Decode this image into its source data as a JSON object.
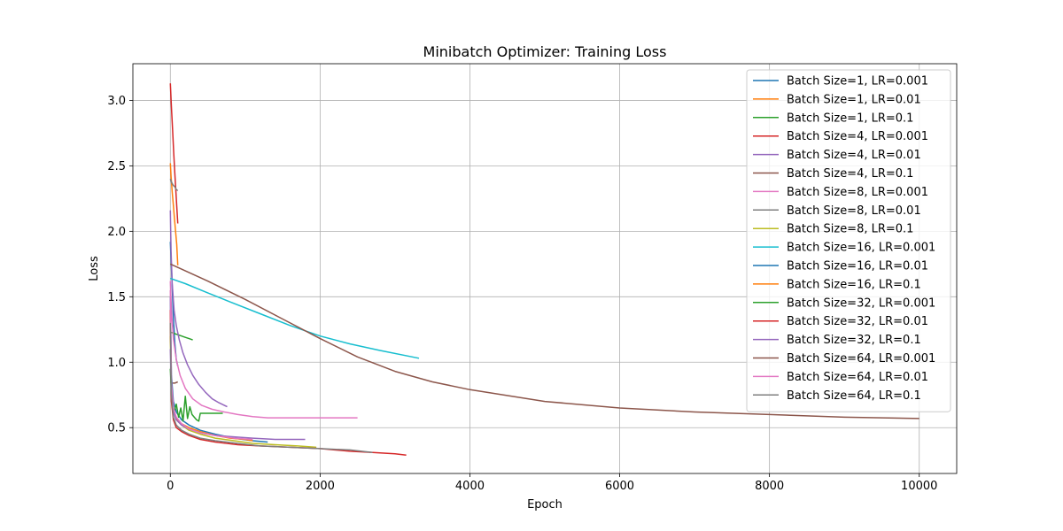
{
  "chart_data": {
    "type": "line",
    "title": "Minibatch Optimizer: Training Loss",
    "xlabel": "Epoch",
    "ylabel": "Loss",
    "xlim": [
      -500,
      10500
    ],
    "ylim": [
      0.15,
      3.28
    ],
    "xticks": [
      0,
      2000,
      4000,
      6000,
      8000,
      10000
    ],
    "xtick_labels": [
      "0",
      "2000",
      "4000",
      "6000",
      "8000",
      "10000"
    ],
    "yticks": [
      0.5,
      1.0,
      1.5,
      2.0,
      2.5,
      3.0
    ],
    "ytick_labels": [
      "0.5",
      "1.0",
      "1.5",
      "2.0",
      "2.5",
      "3.0"
    ],
    "grid": true,
    "legend_position": "top-right",
    "series": [
      {
        "name": "Batch Size=1, LR=0.001",
        "color": "#1f77b4",
        "x": [
          0,
          20,
          40,
          60,
          80,
          100
        ],
        "y": [
          1.92,
          1.65,
          1.35,
          1.15,
          1.02,
          0.97
        ]
      },
      {
        "name": "Batch Size=1, LR=0.01",
        "color": "#ff7f0e",
        "x": [
          0,
          10,
          25,
          40,
          55,
          70,
          85,
          100
        ],
        "y": [
          2.52,
          2.42,
          2.3,
          2.2,
          2.1,
          2.0,
          1.9,
          1.74
        ]
      },
      {
        "name": "Batch Size=1, LR=0.1",
        "color": "#2ca02c",
        "x": [
          0,
          50,
          100,
          150,
          200,
          250,
          300
        ],
        "y": [
          1.23,
          1.22,
          1.21,
          1.2,
          1.19,
          1.18,
          1.17
        ]
      },
      {
        "name": "Batch Size=4, LR=0.001",
        "color": "#d62728",
        "x": [
          0,
          15,
          30,
          45,
          60,
          75,
          90,
          100
        ],
        "y": [
          3.13,
          2.95,
          2.78,
          2.6,
          2.45,
          2.3,
          2.15,
          2.06
        ]
      },
      {
        "name": "Batch Size=4, LR=0.01",
        "color": "#9467bd",
        "x": [
          0,
          10,
          25,
          50,
          80,
          120,
          170,
          230,
          300,
          380,
          470,
          560,
          650,
          760
        ],
        "y": [
          2.16,
          1.85,
          1.6,
          1.4,
          1.28,
          1.17,
          1.07,
          0.98,
          0.9,
          0.83,
          0.77,
          0.72,
          0.69,
          0.66
        ]
      },
      {
        "name": "Batch Size=4, LR=0.1",
        "color": "#8c564b",
        "x": [
          0,
          30,
          60,
          100
        ],
        "y": [
          0.85,
          0.84,
          0.84,
          0.85
        ]
      },
      {
        "name": "Batch Size=8, LR=0.001",
        "color": "#e377c2",
        "x": [
          0,
          15,
          40,
          80,
          130,
          200,
          300,
          420,
          560,
          720,
          900,
          1100,
          1300,
          1600,
          1900,
          2200,
          2500
        ],
        "y": [
          1.62,
          1.4,
          1.18,
          1.02,
          0.9,
          0.8,
          0.72,
          0.67,
          0.64,
          0.62,
          0.6,
          0.585,
          0.575,
          0.575,
          0.575,
          0.575,
          0.575
        ]
      },
      {
        "name": "Batch Size=8, LR=0.01",
        "color": "#7f7f7f",
        "x": [
          0,
          20,
          40,
          60,
          80,
          100
        ],
        "y": [
          2.4,
          2.37,
          2.35,
          2.34,
          2.32,
          2.31
        ]
      },
      {
        "name": "Batch Size=8, LR=0.1",
        "color": "#bcbd22",
        "x": [
          0,
          15,
          40,
          80,
          150,
          250,
          400,
          600,
          850,
          1100,
          1400,
          1700,
          1950
        ],
        "y": [
          1.2,
          0.78,
          0.62,
          0.56,
          0.52,
          0.48,
          0.45,
          0.42,
          0.4,
          0.38,
          0.37,
          0.36,
          0.35
        ]
      },
      {
        "name": "Batch Size=16, LR=0.001",
        "color": "#17becf",
        "x": [
          0,
          200,
          500,
          800,
          1200,
          1600,
          2000,
          2400,
          2800,
          3320
        ],
        "y": [
          1.64,
          1.6,
          1.53,
          1.46,
          1.37,
          1.28,
          1.2,
          1.14,
          1.09,
          1.03
        ]
      },
      {
        "name": "Batch Size=16, LR=0.01",
        "color": "#1f77b4",
        "x": [
          0,
          15,
          40,
          80,
          150,
          250,
          400,
          600,
          850,
          1100,
          1300
        ],
        "y": [
          1.5,
          0.9,
          0.7,
          0.62,
          0.56,
          0.52,
          0.48,
          0.45,
          0.42,
          0.4,
          0.39
        ]
      },
      {
        "name": "Batch Size=16, LR=0.1",
        "color": "#ff7f0e",
        "x": [
          0,
          15,
          40,
          80,
          150,
          250,
          400,
          600,
          800,
          1000,
          1100
        ],
        "y": [
          1.3,
          0.8,
          0.63,
          0.57,
          0.53,
          0.5,
          0.47,
          0.44,
          0.42,
          0.41,
          0.4
        ]
      },
      {
        "name": "Batch Size=32, LR=0.001",
        "color": "#2ca02c",
        "x": [
          0,
          20,
          50,
          80,
          110,
          140,
          170,
          200,
          230,
          260,
          290,
          320,
          350,
          380,
          400,
          450,
          550,
          700
        ],
        "y": [
          0.95,
          0.7,
          0.62,
          0.68,
          0.58,
          0.65,
          0.55,
          0.74,
          0.57,
          0.66,
          0.6,
          0.58,
          0.56,
          0.55,
          0.61,
          0.61,
          0.61,
          0.61
        ]
      },
      {
        "name": "Batch Size=32, LR=0.01",
        "color": "#d62728",
        "x": [
          0,
          15,
          40,
          80,
          150,
          250,
          400,
          600,
          900,
          1200,
          1600,
          2000,
          2400,
          2700,
          3000,
          3150
        ],
        "y": [
          1.4,
          0.7,
          0.56,
          0.5,
          0.47,
          0.44,
          0.41,
          0.39,
          0.37,
          0.36,
          0.35,
          0.34,
          0.32,
          0.31,
          0.3,
          0.29
        ]
      },
      {
        "name": "Batch Size=32, LR=0.1",
        "color": "#9467bd",
        "x": [
          0,
          15,
          40,
          80,
          150,
          250,
          400,
          600,
          850,
          1100,
          1400,
          1800
        ],
        "y": [
          1.1,
          0.78,
          0.62,
          0.56,
          0.52,
          0.49,
          0.46,
          0.44,
          0.43,
          0.42,
          0.41,
          0.41
        ]
      },
      {
        "name": "Batch Size=64, LR=0.001",
        "color": "#8c564b",
        "x": [
          0,
          500,
          1000,
          1500,
          2000,
          2500,
          3000,
          3500,
          4000,
          5000,
          6000,
          7000,
          8000,
          9000,
          10000
        ],
        "y": [
          1.75,
          1.62,
          1.48,
          1.33,
          1.18,
          1.04,
          0.93,
          0.85,
          0.79,
          0.7,
          0.65,
          0.62,
          0.6,
          0.58,
          0.57
        ]
      },
      {
        "name": "Batch Size=64, LR=0.01",
        "color": "#e377c2",
        "x": [
          0,
          15,
          40,
          80,
          150,
          250,
          400,
          600,
          850,
          1100
        ],
        "y": [
          1.55,
          0.85,
          0.65,
          0.58,
          0.53,
          0.49,
          0.46,
          0.44,
          0.42,
          0.41
        ]
      },
      {
        "name": "Batch Size=64, LR=0.1",
        "color": "#7f7f7f",
        "x": [
          0,
          15,
          40,
          80,
          150,
          250,
          400,
          600,
          900,
          1200,
          1600,
          2000,
          2400,
          2700
        ],
        "y": [
          1.3,
          0.75,
          0.58,
          0.52,
          0.48,
          0.45,
          0.42,
          0.4,
          0.38,
          0.36,
          0.35,
          0.34,
          0.33,
          0.31
        ]
      }
    ]
  }
}
